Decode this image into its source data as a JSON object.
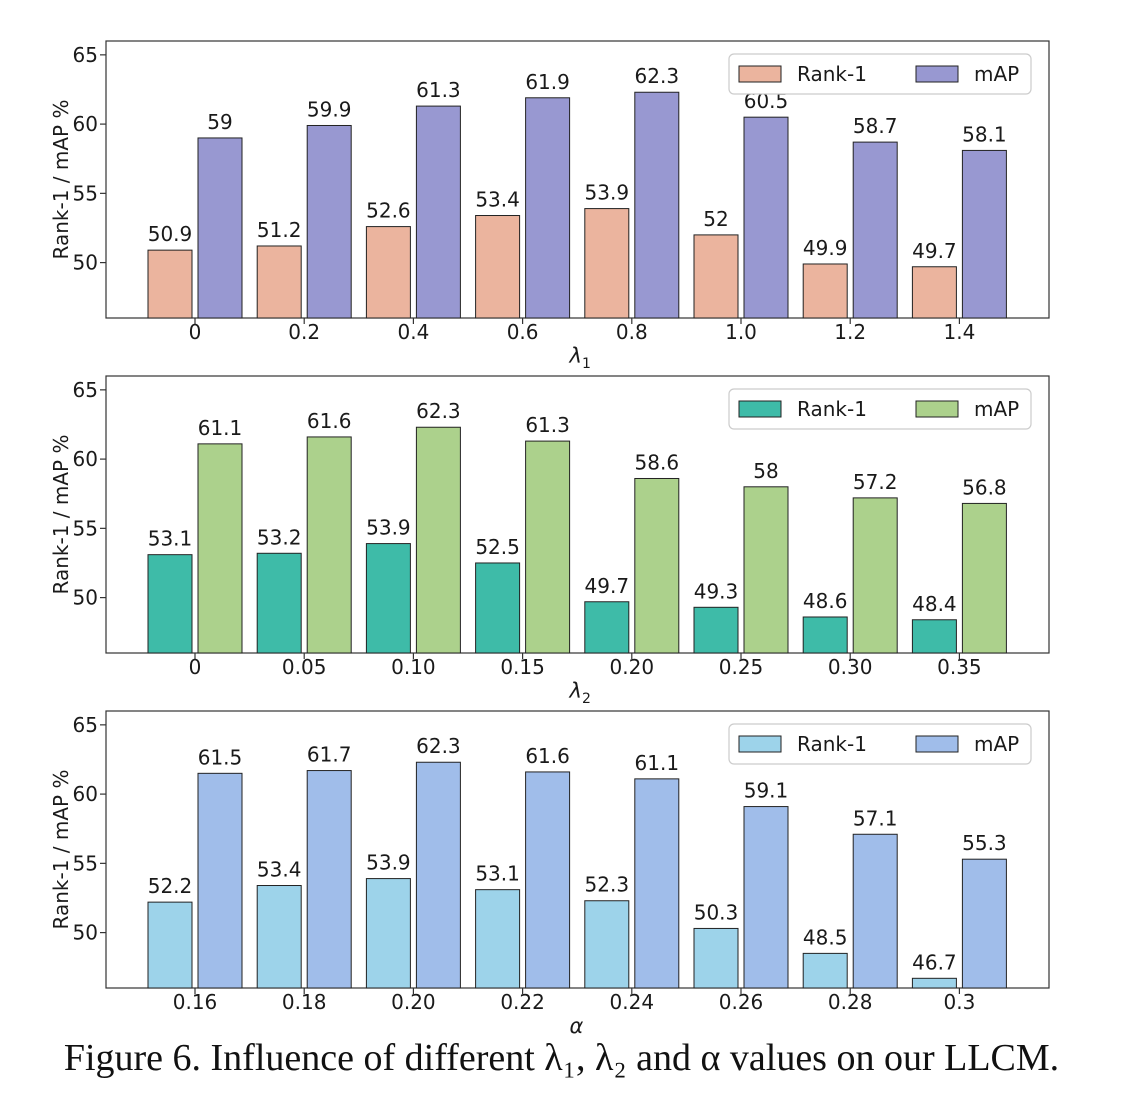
{
  "caption": "Figure 6. Influence of different λ₁, λ₂ and α values on our LLCM.",
  "chart_data": [
    {
      "type": "bar",
      "xlabel": "λ1",
      "xlabel_main": "λ",
      "xlabel_sub": "1",
      "ylabel": "Rank-1 / mAP %",
      "ylim": [
        46,
        66
      ],
      "yticks": [
        50,
        55,
        60,
        65
      ],
      "grid": false,
      "legend_position": "top-right",
      "categories": [
        "0",
        "0.2",
        "0.4",
        "0.6",
        "0.8",
        "1.0",
        "1.2",
        "1.4"
      ],
      "series": [
        {
          "name": "Rank-1",
          "color": "#EBB49E",
          "values": [
            50.9,
            51.2,
            52.6,
            53.4,
            53.9,
            52,
            49.9,
            49.7
          ],
          "labels": [
            "50.9",
            "51.2",
            "52.6",
            "53.4",
            "53.9",
            "52",
            "49.9",
            "49.7"
          ]
        },
        {
          "name": "mAP",
          "color": "#9898D1",
          "values": [
            59,
            59.9,
            61.3,
            61.9,
            62.3,
            60.5,
            58.7,
            58.1
          ],
          "labels": [
            "59",
            "59.9",
            "61.3",
            "61.9",
            "62.3",
            "60.5",
            "58.7",
            "58.1"
          ]
        }
      ]
    },
    {
      "type": "bar",
      "xlabel": "λ2",
      "xlabel_main": "λ",
      "xlabel_sub": "2",
      "ylabel": "Rank-1 / mAP %",
      "ylim": [
        46,
        66
      ],
      "yticks": [
        50,
        55,
        60,
        65
      ],
      "grid": false,
      "legend_position": "top-right",
      "categories": [
        "0",
        "0.05",
        "0.10",
        "0.15",
        "0.20",
        "0.25",
        "0.30",
        "0.35"
      ],
      "series": [
        {
          "name": "Rank-1",
          "color": "#3EBBA8",
          "values": [
            53.1,
            53.2,
            53.9,
            52.5,
            49.7,
            49.3,
            48.6,
            48.4
          ],
          "labels": [
            "53.1",
            "53.2",
            "53.9",
            "52.5",
            "49.7",
            "49.3",
            "48.6",
            "48.4"
          ]
        },
        {
          "name": "mAP",
          "color": "#ACD18C",
          "values": [
            61.1,
            61.6,
            62.3,
            61.3,
            58.6,
            58,
            57.2,
            56.8
          ],
          "labels": [
            "61.1",
            "61.6",
            "62.3",
            "61.3",
            "58.6",
            "58",
            "57.2",
            "56.8"
          ]
        }
      ]
    },
    {
      "type": "bar",
      "xlabel": "α",
      "xlabel_main": "α",
      "xlabel_sub": "",
      "ylabel": "Rank-1 / mAP %",
      "ylim": [
        46,
        66
      ],
      "yticks": [
        50,
        55,
        60,
        65
      ],
      "grid": false,
      "legend_position": "top-right",
      "categories": [
        "0.16",
        "0.18",
        "0.20",
        "0.22",
        "0.24",
        "0.26",
        "0.28",
        "0.3"
      ],
      "series": [
        {
          "name": "Rank-1",
          "color": "#9DD3EA",
          "values": [
            52.2,
            53.4,
            53.9,
            53.1,
            52.3,
            50.3,
            48.5,
            46.7
          ],
          "labels": [
            "52.2",
            "53.4",
            "53.9",
            "53.1",
            "52.3",
            "50.3",
            "48.5",
            "46.7"
          ]
        },
        {
          "name": "mAP",
          "color": "#A0BDEA",
          "values": [
            61.5,
            61.7,
            62.3,
            61.6,
            61.1,
            59.1,
            57.1,
            55.3
          ],
          "labels": [
            "61.5",
            "61.7",
            "62.3",
            "61.6",
            "61.1",
            "59.1",
            "57.1",
            "55.3"
          ]
        }
      ]
    }
  ]
}
